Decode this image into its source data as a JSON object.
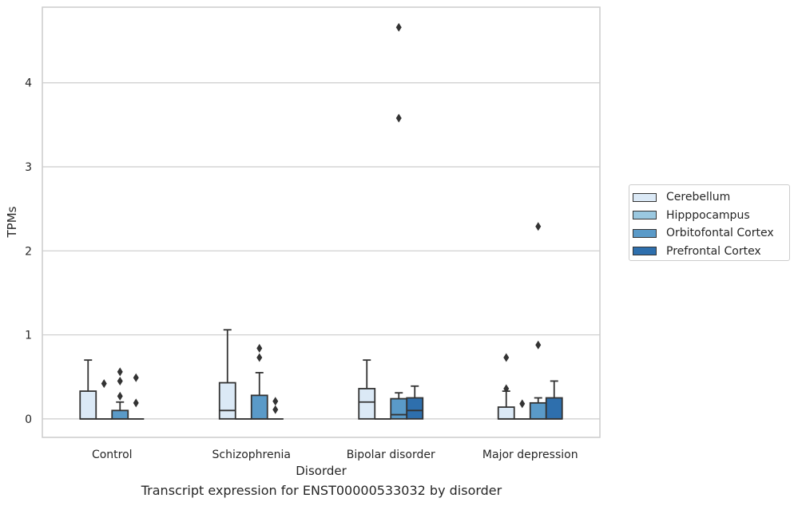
{
  "chart_data": {
    "type": "boxplot",
    "title": "",
    "caption": "Transcript expression for ENST00000533032 by disorder",
    "xlabel": "Disorder",
    "ylabel": "TPMs",
    "ylim": [
      -0.22,
      4.9
    ],
    "yticks": [
      0,
      1,
      2,
      3,
      4
    ],
    "grid": "horizontal",
    "legend_position": "right",
    "categories": [
      "Control",
      "Schizophrenia",
      "Bipolar disorder",
      "Major depression"
    ],
    "series": [
      {
        "name": "Cerebellum",
        "color": "#dbe9f6",
        "boxes": [
          {
            "q1": 0,
            "median": 0,
            "q3": 0.33,
            "whisker_low": 0,
            "whisker_high": 0.7,
            "outliers": []
          },
          {
            "q1": 0,
            "median": 0.1,
            "q3": 0.43,
            "whisker_low": 0,
            "whisker_high": 1.06,
            "outliers": []
          },
          {
            "q1": 0,
            "median": 0.2,
            "q3": 0.36,
            "whisker_low": 0,
            "whisker_high": 0.7,
            "outliers": []
          },
          {
            "q1": 0,
            "median": 0,
            "q3": 0.14,
            "whisker_low": 0,
            "whisker_high": 0.33,
            "outliers": [
              0.36,
              0.73
            ]
          }
        ]
      },
      {
        "name": "Hipppocampus",
        "color": "#9ac8e0",
        "boxes": [
          {
            "q1": 0,
            "median": 0,
            "q3": 0,
            "whisker_low": 0,
            "whisker_high": 0,
            "outliers": [
              0.42
            ]
          },
          {
            "q1": 0,
            "median": 0,
            "q3": 0,
            "whisker_low": 0,
            "whisker_high": 0,
            "outliers": []
          },
          {
            "q1": 0,
            "median": 0,
            "q3": 0,
            "whisker_low": 0,
            "whisker_high": 0,
            "outliers": []
          },
          {
            "q1": 0,
            "median": 0,
            "q3": 0,
            "whisker_low": 0,
            "whisker_high": 0,
            "outliers": [
              0.18
            ]
          }
        ]
      },
      {
        "name": "Orbitofontal Cortex",
        "color": "#5a9ac8",
        "boxes": [
          {
            "q1": 0,
            "median": 0,
            "q3": 0.1,
            "whisker_low": 0,
            "whisker_high": 0.2,
            "outliers": [
              0.27,
              0.45,
              0.56
            ]
          },
          {
            "q1": 0,
            "median": 0,
            "q3": 0.28,
            "whisker_low": 0,
            "whisker_high": 0.55,
            "outliers": [
              0.73,
              0.84
            ]
          },
          {
            "q1": 0,
            "median": 0.05,
            "q3": 0.24,
            "whisker_low": 0,
            "whisker_high": 0.31,
            "outliers": [
              3.58,
              4.66
            ]
          },
          {
            "q1": 0,
            "median": 0,
            "q3": 0.19,
            "whisker_low": 0,
            "whisker_high": 0.25,
            "outliers": [
              0.88,
              2.29
            ]
          }
        ]
      },
      {
        "name": "Prefrontal Cortex",
        "color": "#2e6fad",
        "boxes": [
          {
            "q1": 0,
            "median": 0,
            "q3": 0,
            "whisker_low": 0,
            "whisker_high": 0,
            "outliers": [
              0.19,
              0.49
            ]
          },
          {
            "q1": 0,
            "median": 0,
            "q3": 0,
            "whisker_low": 0,
            "whisker_high": 0,
            "outliers": [
              0.11,
              0.21
            ]
          },
          {
            "q1": 0,
            "median": 0.1,
            "q3": 0.25,
            "whisker_low": 0,
            "whisker_high": 0.39,
            "outliers": []
          },
          {
            "q1": 0,
            "median": 0,
            "q3": 0.25,
            "whisker_low": 0,
            "whisker_high": 0.45,
            "outliers": []
          }
        ]
      }
    ]
  }
}
